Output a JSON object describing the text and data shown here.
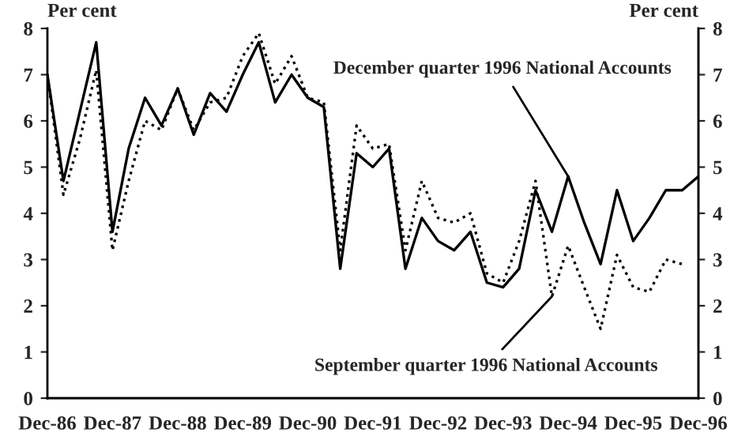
{
  "chart_data": {
    "type": "line",
    "ylabel": "Per cent",
    "y2label": "Per cent",
    "x": [
      "1986-12",
      "1987-03",
      "1987-06",
      "1987-09",
      "1987-12",
      "1988-03",
      "1988-06",
      "1988-09",
      "1988-12",
      "1989-03",
      "1989-06",
      "1989-09",
      "1989-12",
      "1990-03",
      "1990-06",
      "1990-09",
      "1990-12",
      "1991-03",
      "1991-06",
      "1991-09",
      "1991-12",
      "1992-03",
      "1992-06",
      "1992-09",
      "1992-12",
      "1993-03",
      "1993-06",
      "1993-09",
      "1993-12",
      "1994-03",
      "1994-06",
      "1994-09",
      "1994-12",
      "1995-03",
      "1995-06",
      "1995-09",
      "1995-12",
      "1996-03",
      "1996-06",
      "1996-09",
      "1996-12"
    ],
    "series": [
      {
        "color": "#000000",
        "line_style": "solid",
        "values": [
          7.0,
          4.7,
          6.2,
          7.7,
          3.6,
          5.4,
          6.5,
          5.9,
          6.7,
          5.7,
          6.6,
          6.2,
          7.0,
          7.7,
          6.4,
          7.0,
          6.5,
          6.3,
          2.8,
          5.3,
          5.0,
          5.4,
          2.8,
          3.9,
          3.4,
          3.2,
          3.6,
          2.5,
          2.4,
          2.8,
          4.5,
          3.6,
          4.8,
          3.8,
          2.9,
          4.5,
          3.4,
          3.9,
          4.5,
          4.5,
          4.8
        ]
      },
      {
        "color": "#000000",
        "line_style": "dotted",
        "values": [
          7.0,
          4.4,
          5.6,
          7.1,
          3.2,
          4.7,
          6.0,
          5.8,
          6.7,
          5.8,
          6.4,
          6.5,
          7.4,
          7.9,
          6.8,
          7.4,
          6.5,
          6.4,
          3.2,
          5.9,
          5.4,
          5.5,
          3.2,
          4.7,
          3.9,
          3.8,
          4.0,
          2.7,
          2.5,
          3.4,
          4.7,
          2.2,
          3.3,
          2.4,
          1.5,
          3.1,
          2.4,
          2.3,
          3.0,
          2.9,
          null
        ]
      }
    ],
    "annotations": [
      {
        "text": "December quarter 1996 National Accounts",
        "x": "1994-12",
        "y": 4.8
      },
      {
        "text": "September quarter 1996 National Accounts",
        "x": "1994-09",
        "y": 2.2
      }
    ],
    "xlim": [
      "1986-12",
      "1996-12"
    ],
    "xticks": [
      {
        "value": "1986-12",
        "label": "Dec-86"
      },
      {
        "value": "1987-12",
        "label": "Dec-87"
      },
      {
        "value": "1988-12",
        "label": "Dec-88"
      },
      {
        "value": "1989-12",
        "label": "Dec-89"
      },
      {
        "value": "1990-12",
        "label": "Dec-90"
      },
      {
        "value": "1991-12",
        "label": "Dec-91"
      },
      {
        "value": "1992-12",
        "label": "Dec-92"
      },
      {
        "value": "1993-12",
        "label": "Dec-93"
      },
      {
        "value": "1994-12",
        "label": "Dec-94"
      },
      {
        "value": "1995-12",
        "label": "Dec-95"
      },
      {
        "value": "1996-12",
        "label": "Dec-96"
      }
    ],
    "ylim": [
      0,
      8
    ],
    "yticks": [
      0,
      1,
      2,
      3,
      4,
      5,
      6,
      7,
      8
    ],
    "y2lim": [
      0,
      8
    ],
    "y2ticks": [
      0,
      1,
      2,
      3,
      4,
      5,
      6,
      7,
      8
    ],
    "grid": false
  }
}
